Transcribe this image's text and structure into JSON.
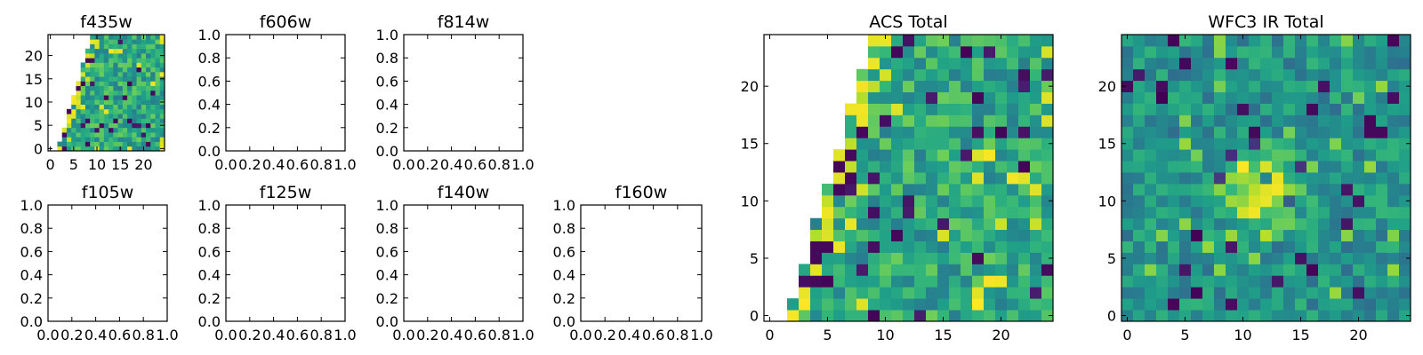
{
  "chart_data": [
    {
      "type": "heatmap",
      "title": "f435w",
      "xlim": [
        -0.5,
        24.5
      ],
      "ylim": [
        -0.5,
        24.5
      ],
      "xticks": [
        0,
        5,
        10,
        15,
        20
      ],
      "xticklabels": [
        "0",
        "5",
        "10",
        "15",
        "20"
      ],
      "yticks": [
        0,
        5,
        10,
        15,
        20
      ],
      "yticklabels": [
        "0",
        "5",
        "10",
        "15",
        "20"
      ],
      "mask": "upper-left triangle empty (boundary from x≈2 at y=0 to x≈10 at y=24)",
      "colormap": "viridis"
    },
    {
      "type": "empty",
      "title": "f606w",
      "xlim": [
        0,
        1
      ],
      "ylim": [
        0,
        1
      ],
      "xticks": [
        0,
        0.2,
        0.4,
        0.6,
        0.8,
        1.0
      ],
      "xticklabels": [
        "0.0",
        "0.2",
        "0.4",
        "0.6",
        "0.8",
        "1.0"
      ],
      "yticks": [
        0,
        0.2,
        0.4,
        0.6,
        0.8,
        1.0
      ],
      "yticklabels": [
        "0.0",
        "0.2",
        "0.4",
        "0.6",
        "0.8",
        "1.0"
      ]
    },
    {
      "type": "empty",
      "title": "f814w",
      "xlim": [
        0,
        1
      ],
      "ylim": [
        0,
        1
      ],
      "xticks": [
        0,
        0.2,
        0.4,
        0.6,
        0.8,
        1.0
      ],
      "xticklabels": [
        "0.0",
        "0.2",
        "0.4",
        "0.6",
        "0.8",
        "1.0"
      ],
      "yticks": [
        0,
        0.2,
        0.4,
        0.6,
        0.8,
        1.0
      ],
      "yticklabels": [
        "0.0",
        "0.2",
        "0.4",
        "0.6",
        "0.8",
        "1.0"
      ]
    },
    {
      "type": "empty",
      "title": "f105w",
      "xlim": [
        0,
        1
      ],
      "ylim": [
        0,
        1
      ],
      "xticks": [
        0,
        0.2,
        0.4,
        0.6,
        0.8,
        1.0
      ],
      "xticklabels": [
        "0.0",
        "0.2",
        "0.4",
        "0.6",
        "0.8",
        "1.0"
      ],
      "yticks": [
        0,
        0.2,
        0.4,
        0.6,
        0.8,
        1.0
      ],
      "yticklabels": [
        "0.0",
        "0.2",
        "0.4",
        "0.6",
        "0.8",
        "1.0"
      ]
    },
    {
      "type": "empty",
      "title": "f125w",
      "xlim": [
        0,
        1
      ],
      "ylim": [
        0,
        1
      ],
      "xticks": [
        0,
        0.2,
        0.4,
        0.6,
        0.8,
        1.0
      ],
      "xticklabels": [
        "0.0",
        "0.2",
        "0.4",
        "0.6",
        "0.8",
        "1.0"
      ],
      "yticks": [
        0,
        0.2,
        0.4,
        0.6,
        0.8,
        1.0
      ],
      "yticklabels": [
        "0.0",
        "0.2",
        "0.4",
        "0.6",
        "0.8",
        "1.0"
      ]
    },
    {
      "type": "empty",
      "title": "f140w",
      "xlim": [
        0,
        1
      ],
      "ylim": [
        0,
        1
      ],
      "xticks": [
        0,
        0.2,
        0.4,
        0.6,
        0.8,
        1.0
      ],
      "xticklabels": [
        "0.0",
        "0.2",
        "0.4",
        "0.6",
        "0.8",
        "1.0"
      ],
      "yticks": [
        0,
        0.2,
        0.4,
        0.6,
        0.8,
        1.0
      ],
      "yticklabels": [
        "0.0",
        "0.2",
        "0.4",
        "0.6",
        "0.8",
        "1.0"
      ]
    },
    {
      "type": "empty",
      "title": "f160w",
      "xlim": [
        0,
        1
      ],
      "ylim": [
        0,
        1
      ],
      "xticks": [
        0,
        0.2,
        0.4,
        0.6,
        0.8,
        1.0
      ],
      "xticklabels": [
        "0.0",
        "0.2",
        "0.4",
        "0.6",
        "0.8",
        "1.0"
      ],
      "yticks": [
        0,
        0.2,
        0.4,
        0.6,
        0.8,
        1.0
      ],
      "yticklabels": [
        "0.0",
        "0.2",
        "0.4",
        "0.6",
        "0.8",
        "1.0"
      ]
    },
    {
      "type": "heatmap",
      "title": "ACS Total",
      "xlim": [
        -0.5,
        24.5
      ],
      "ylim": [
        -0.5,
        24.5
      ],
      "xticks": [
        0,
        5,
        10,
        15,
        20
      ],
      "xticklabels": [
        "0",
        "5",
        "10",
        "15",
        "20"
      ],
      "yticks": [
        0,
        5,
        10,
        15,
        20
      ],
      "yticklabels": [
        "0",
        "5",
        "10",
        "15",
        "20"
      ],
      "mask": "upper-left triangle empty (boundary from x≈2 at y=0 to x≈9 at y=24)",
      "colormap": "viridis"
    },
    {
      "type": "heatmap",
      "title": "WFC3 IR Total",
      "xlim": [
        -0.5,
        24.5
      ],
      "ylim": [
        -0.5,
        24.5
      ],
      "xticks": [
        0,
        5,
        10,
        15,
        20
      ],
      "xticklabels": [
        "0",
        "5",
        "10",
        "15",
        "20"
      ],
      "yticks": [
        0,
        5,
        10,
        15,
        20
      ],
      "yticklabels": [
        "0",
        "5",
        "10",
        "15",
        "20"
      ],
      "feature": "bright (yellow) region centred near x≈11, y≈11",
      "colormap": "viridis"
    }
  ]
}
